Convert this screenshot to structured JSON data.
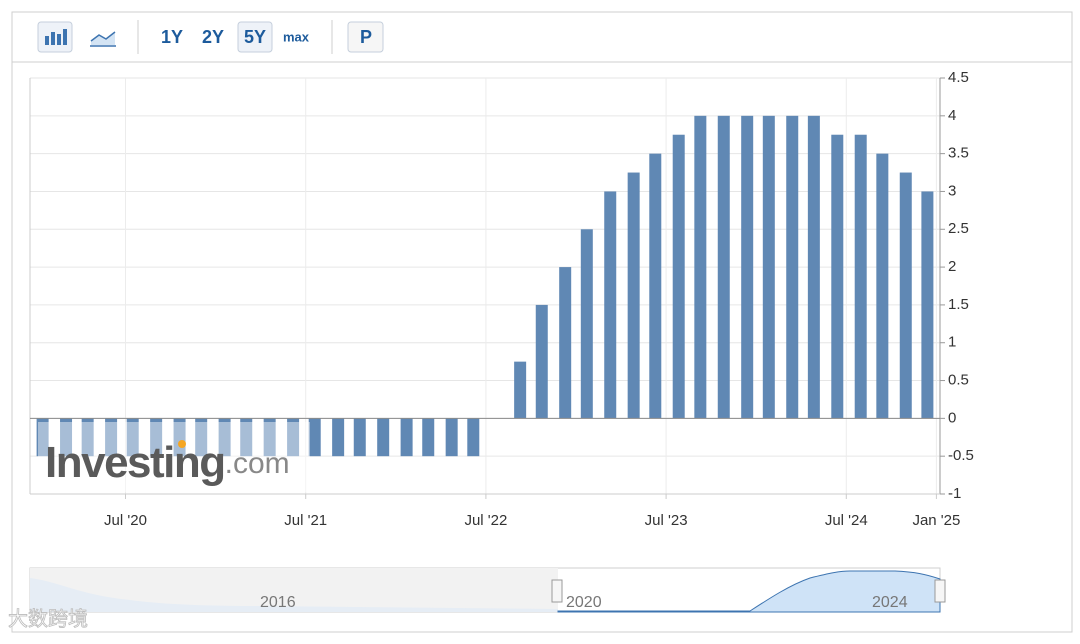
{
  "toolbar": {
    "ranges": [
      "1Y",
      "2Y",
      "5Y",
      "max"
    ],
    "extra": "P"
  },
  "chart_data": {
    "type": "bar",
    "color": "#6088b4",
    "grid": true,
    "x": [
      2020.04,
      2020.17,
      2020.29,
      2020.42,
      2020.54,
      2020.67,
      2020.8,
      2020.92,
      2021.05,
      2021.17,
      2021.3,
      2021.43,
      2021.55,
      2021.68,
      2021.8,
      2021.93,
      2022.06,
      2022.18,
      2022.31,
      2022.43,
      2022.56,
      2022.69,
      2022.81,
      2022.94,
      2023.06,
      2023.19,
      2023.32,
      2023.44,
      2023.57,
      2023.69,
      2023.82,
      2023.95,
      2024.07,
      2024.2,
      2024.32,
      2024.45,
      2024.58,
      2024.7,
      2024.83,
      2024.95
    ],
    "values": [
      -0.5,
      -0.5,
      -0.5,
      -0.5,
      -0.5,
      -0.5,
      -0.5,
      -0.5,
      -0.5,
      -0.5,
      -0.5,
      -0.5,
      -0.5,
      -0.5,
      -0.5,
      -0.5,
      -0.5,
      -0.5,
      -0.5,
      -0.5,
      0,
      0.75,
      1.5,
      2,
      2.5,
      3,
      3.25,
      3.5,
      3.75,
      4,
      4,
      4,
      4,
      4,
      4,
      3.75,
      3.75,
      3.5,
      3.25,
      3
    ],
    "xlim": [
      2019.97,
      2025.02
    ],
    "xticks": [
      {
        "value": 2020.5,
        "label": "Jul '20"
      },
      {
        "value": 2021.5,
        "label": "Jul '21"
      },
      {
        "value": 2022.5,
        "label": "Jul '22"
      },
      {
        "value": 2023.5,
        "label": "Jul '23"
      },
      {
        "value": 2024.5,
        "label": "Jul '24"
      },
      {
        "value": 2025.0,
        "label": "Jan '25"
      }
    ],
    "ylim": [
      -1,
      4.5
    ],
    "yticks": [
      -1,
      -0.5,
      0,
      0.5,
      1,
      1.5,
      2,
      2.5,
      3,
      3.5,
      4,
      4.5
    ]
  },
  "watermark": {
    "brand": "Investing",
    "suffix": ".com"
  },
  "navigator": {
    "labels": [
      "2016",
      "2020",
      "2024"
    ]
  },
  "source_watermark": "大数跨境"
}
